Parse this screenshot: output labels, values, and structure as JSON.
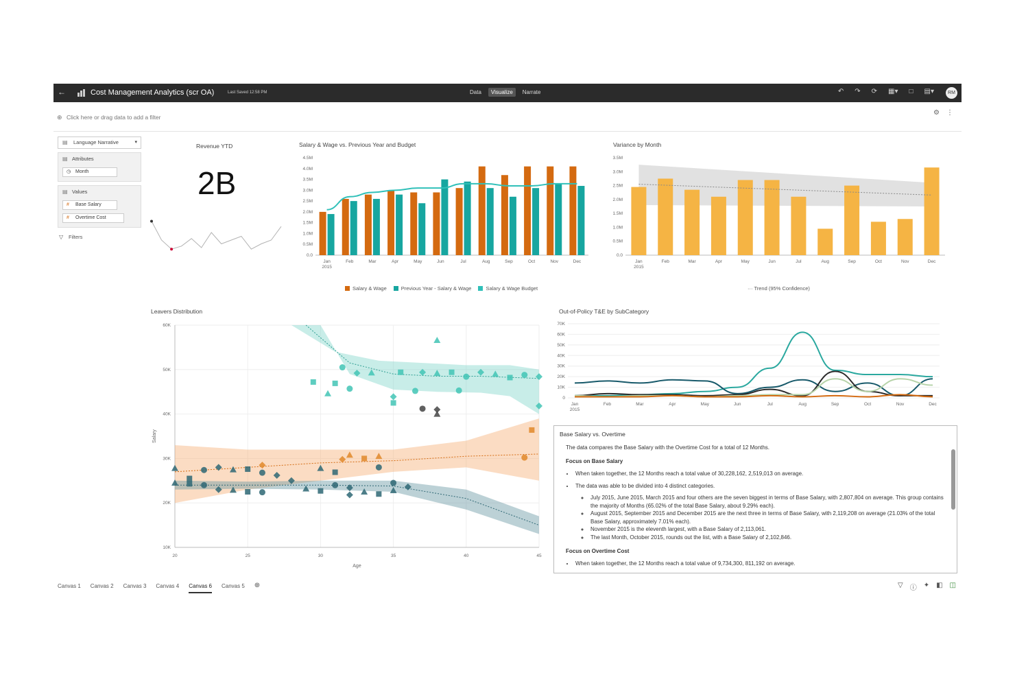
{
  "header": {
    "back_icon": "back-arrow-icon",
    "title": "Cost Management Analytics (scr OA)",
    "saved": "Last Saved 12:58 PM",
    "modes": [
      "Data",
      "Visualize",
      "Narrate"
    ],
    "active_mode": "Visualize",
    "avatar": "RM"
  },
  "filterbar": {
    "hint": "Click here or drag data to add a filter"
  },
  "left_panel": {
    "dropdown": "Language Narrative",
    "attributes_label": "Attributes",
    "attribute_item": "Month",
    "values_label": "Values",
    "value_items": [
      "Base Salary",
      "Overtime Cost"
    ],
    "filters_label": "Filters"
  },
  "kpi": {
    "title": "Revenue YTD",
    "value": "2B"
  },
  "salary_chart": {
    "title": "Salary & Wage vs. Previous Year and Budget"
  },
  "variance_chart": {
    "title": "Variance by Month",
    "trend_legend": "Trend (95% Confidence)"
  },
  "leavers_chart": {
    "title": "Leavers Distribution",
    "xlabel": "Age",
    "ylabel": "Salary"
  },
  "oop_chart": {
    "title": "Out-of-Policy T&E by SubCategory"
  },
  "narrative": {
    "title": "Base Salary vs. Overtime",
    "intro": "The data compares the Base Salary with the Overtime Cost for a total of 12 Months.",
    "h1": "Focus on Base Salary",
    "b1": "When taken together, the 12 Months reach a total value of 30,228,162, 2,519,013 on average.",
    "b2": "The data was able to be divided into 4 distinct categories.",
    "s1": "July 2015, June 2015, March 2015 and four others are the seven biggest in terms of Base Salary, with 2,807,804 on average. This group contains the majority of Months (65.02% of the total Base Salary, about 9.29% each).",
    "s2": "August 2015, September 2015 and December 2015 are the next three in terms of Base Salary, with 2,119,208 on average (21.03% of the total Base Salary, approximately 7.01% each).",
    "s3": "November 2015 is the eleventh largest, with a Base Salary of 2,113,061.",
    "s4": "The last Month, October 2015, rounds out the list, with a Base Salary of 2,102,846.",
    "h2": "Focus on Overtime Cost",
    "b3": "When taken together, the 12 Months reach a total value of 9,734,300, 811,192 on average."
  },
  "tabs": [
    "Canvas 1",
    "Canvas 2",
    "Canvas 3",
    "Canvas 4",
    "Canvas 6",
    "Canvas 5"
  ],
  "active_tab": "Canvas 6",
  "colors": {
    "orange": "#d46a10",
    "teal": "#17a6a0",
    "tealLight": "#30c0b9",
    "amber": "#f5b444",
    "dark": "#2b2b2b"
  },
  "chart_data": [
    {
      "id": "salary",
      "type": "bar",
      "title": "Salary & Wage vs. Previous Year and Budget",
      "categories": [
        "Jan 2015",
        "Feb",
        "Mar",
        "Apr",
        "May",
        "Jun",
        "Jul",
        "Aug",
        "Sep",
        "Oct",
        "Nov",
        "Dec"
      ],
      "series": [
        {
          "name": "Salary & Wage",
          "values": [
            2.0,
            2.6,
            2.8,
            3.0,
            2.9,
            2.9,
            3.1,
            4.1,
            3.7,
            4.1,
            4.1,
            4.1
          ]
        },
        {
          "name": "Previous Year - Salary & Wage",
          "values": [
            1.9,
            2.5,
            2.6,
            2.8,
            2.4,
            3.5,
            3.4,
            3.1,
            2.7,
            3.1,
            3.3,
            3.2
          ]
        },
        {
          "name": "Salary & Wage Budget",
          "values": [
            2.1,
            2.7,
            2.9,
            3.0,
            3.1,
            3.1,
            3.3,
            3.3,
            3.2,
            3.2,
            3.3,
            3.3
          ]
        }
      ],
      "yticks": [
        "0.0",
        "0.5M",
        "1.0M",
        "1.5M",
        "2.0M",
        "2.5M",
        "3.0M",
        "3.5M",
        "4.0M",
        "4.5M"
      ],
      "ylim": [
        0,
        4.5
      ]
    },
    {
      "id": "variance",
      "type": "bar",
      "title": "Variance by Month",
      "categories": [
        "Jan 2015",
        "Feb",
        "Mar",
        "Apr",
        "May",
        "Jun",
        "Jul",
        "Aug",
        "Sep",
        "Oct",
        "Nov",
        "Dec"
      ],
      "values": [
        2.45,
        2.75,
        2.35,
        2.1,
        2.7,
        2.7,
        2.1,
        0.95,
        2.5,
        1.2,
        1.3,
        3.15
      ],
      "trend": [
        2.55,
        2.16
      ],
      "yticks": [
        "0.0",
        "0.5M",
        "1.0M",
        "1.5M",
        "2.0M",
        "2.5M",
        "3.0M",
        "3.5M"
      ],
      "ylim": [
        0,
        3.5
      ]
    },
    {
      "id": "oop",
      "type": "line",
      "title": "Out-of-Policy T&E by SubCategory",
      "categories": [
        "Jan 2015",
        "Feb",
        "Mar",
        "Apr",
        "May",
        "Jun",
        "Jul",
        "Aug",
        "Sep",
        "Oct",
        "Nov",
        "Dec"
      ],
      "series": [
        {
          "color": "#2aa89f",
          "values": [
            2,
            2,
            3,
            4,
            6,
            10,
            28,
            62,
            26,
            22,
            22,
            20
          ]
        },
        {
          "color": "#17596a",
          "values": [
            14,
            16,
            14,
            17,
            16,
            4,
            10,
            17,
            6,
            14,
            2,
            18
          ]
        },
        {
          "color": "#2b2b2b",
          "values": [
            2,
            4,
            3,
            3,
            2,
            3,
            8,
            2,
            25,
            6,
            2,
            2
          ]
        },
        {
          "color": "#b6d3a8",
          "values": [
            2,
            1,
            2,
            2,
            1,
            2,
            3,
            3,
            18,
            6,
            18,
            12
          ]
        },
        {
          "color": "#d46a10",
          "values": [
            1,
            1,
            1,
            2,
            1,
            1,
            2,
            1,
            2,
            1,
            3,
            1
          ]
        }
      ],
      "yticks": [
        "0",
        "10K",
        "20K",
        "30K",
        "40K",
        "50K",
        "60K",
        "70K"
      ],
      "ylim": [
        0,
        70
      ]
    },
    {
      "id": "leavers",
      "type": "scatter",
      "title": "Leavers Distribution",
      "xlabel": "Age",
      "ylabel": "Salary",
      "xlim": [
        20,
        45
      ],
      "ylim": [
        10,
        60
      ],
      "xticks": [
        "20",
        "25",
        "30",
        "35",
        "40",
        "45"
      ],
      "yticks": [
        "10K",
        "20K",
        "30K",
        "40K",
        "50K",
        "60K"
      ],
      "series": [
        {
          "name": "teal",
          "color": "#42c4b5",
          "points": [
            [
              29.5,
              47.2
            ],
            [
              31.5,
              50.5
            ],
            [
              32.5,
              49.2
            ],
            [
              33.5,
              49.3
            ],
            [
              35.5,
              49.4
            ],
            [
              36.5,
              45.2
            ],
            [
              37,
              49.4
            ],
            [
              38,
              49.2
            ],
            [
              39,
              49.4
            ],
            [
              40,
              48.4
            ],
            [
              41,
              49.4
            ],
            [
              42,
              49
            ],
            [
              43,
              48.2
            ],
            [
              44,
              48.8
            ],
            [
              45,
              48.4
            ],
            [
              38,
              56.6
            ],
            [
              31,
              46.9
            ],
            [
              32,
              45.7
            ],
            [
              35,
              43.9
            ],
            [
              30.5,
              44.6
            ],
            [
              35,
              42.5
            ],
            [
              39.5,
              45.3
            ],
            [
              45,
              41.8
            ]
          ]
        },
        {
          "name": "dark",
          "color": "#444444",
          "points": [
            [
              37,
              41.2
            ],
            [
              38,
              41
            ],
            [
              38,
              40
            ]
          ]
        },
        {
          "name": "orange",
          "color": "#e0882a",
          "points": [
            [
              26,
              28.5
            ],
            [
              32,
              30.8
            ],
            [
              33,
              30
            ],
            [
              44,
              30.2
            ],
            [
              31.5,
              29.8
            ],
            [
              34,
              30.5
            ],
            [
              44.5,
              36.4
            ]
          ]
        },
        {
          "name": "slate",
          "color": "#2e6774",
          "points": [
            [
              20,
              27.8
            ],
            [
              21,
              25.5
            ],
            [
              22,
              27.4
            ],
            [
              23,
              28
            ],
            [
              24,
              27.5
            ],
            [
              25,
              27.6
            ],
            [
              26,
              26.8
            ],
            [
              27,
              26.2
            ],
            [
              20,
              24.5
            ],
            [
              21,
              24.3
            ],
            [
              22,
              24
            ],
            [
              23,
              23
            ],
            [
              24,
              22.9
            ],
            [
              25,
              22.5
            ],
            [
              26,
              22.4
            ],
            [
              28,
              25
            ],
            [
              29,
              23.2
            ],
            [
              30,
              22.7
            ],
            [
              31,
              24
            ],
            [
              32,
              23.4
            ],
            [
              33,
              22.5
            ],
            [
              34,
              22
            ],
            [
              35,
              24.5
            ],
            [
              36,
              23.6
            ],
            [
              30,
              27.8
            ],
            [
              31,
              26.9
            ],
            [
              34,
              28
            ],
            [
              32,
              21.8
            ],
            [
              35,
              22.8
            ]
          ]
        }
      ]
    },
    {
      "id": "spark",
      "type": "line",
      "values": [
        55,
        30,
        18,
        22,
        32,
        20,
        40,
        25,
        30,
        35,
        18,
        25,
        30,
        48
      ],
      "ylim": [
        0,
        70
      ]
    }
  ]
}
